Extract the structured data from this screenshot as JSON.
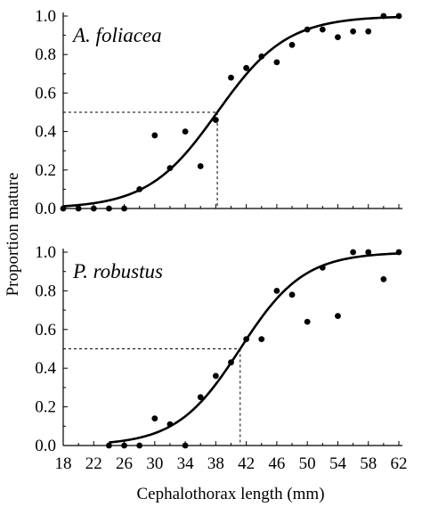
{
  "chart_data": {
    "type": "scatter",
    "xlabel": "Cephalothorax length (mm)",
    "ylabel": "Proportion mature",
    "xlim": [
      18,
      62
    ],
    "ylim": [
      0,
      1
    ],
    "xticks": [
      "18",
      "22",
      "26",
      "30",
      "34",
      "38",
      "42",
      "46",
      "50",
      "54",
      "58",
      "62"
    ],
    "yticks": [
      "0.0",
      "0.2",
      "0.4",
      "0.6",
      "0.8",
      "1.0"
    ],
    "point_color": "#000000",
    "line_color": "#000000",
    "panels": [
      {
        "title": "A. foliacea",
        "points": [
          [
            18,
            0.0
          ],
          [
            20,
            0.0
          ],
          [
            22,
            0.0
          ],
          [
            24,
            0.0
          ],
          [
            26,
            0.0
          ],
          [
            28,
            0.1
          ],
          [
            30,
            0.38
          ],
          [
            32,
            0.21
          ],
          [
            34,
            0.4
          ],
          [
            36,
            0.22
          ],
          [
            38,
            0.46
          ],
          [
            40,
            0.68
          ],
          [
            42,
            0.73
          ],
          [
            44,
            0.79
          ],
          [
            46,
            0.76
          ],
          [
            48,
            0.85
          ],
          [
            50,
            0.93
          ],
          [
            52,
            0.93
          ],
          [
            54,
            0.89
          ],
          [
            56,
            0.92
          ],
          [
            58,
            0.92
          ],
          [
            60,
            1.0
          ],
          [
            62,
            1.0
          ]
        ],
        "curve": {
          "midpoint": 38.2,
          "slope": 0.22,
          "x_range": [
            18,
            62
          ]
        },
        "reference_line": {
          "x": 38.2,
          "y": 0.5
        }
      },
      {
        "title": "P. robustus",
        "points": [
          [
            24,
            0.0
          ],
          [
            26,
            0.0
          ],
          [
            28,
            0.0
          ],
          [
            30,
            0.14
          ],
          [
            32,
            0.11
          ],
          [
            34,
            0.0
          ],
          [
            36,
            0.25
          ],
          [
            38,
            0.36
          ],
          [
            40,
            0.43
          ],
          [
            42,
            0.55
          ],
          [
            44,
            0.55
          ],
          [
            46,
            0.8
          ],
          [
            48,
            0.78
          ],
          [
            50,
            0.64
          ],
          [
            52,
            0.92
          ],
          [
            54,
            0.67
          ],
          [
            56,
            1.0
          ],
          [
            58,
            1.0
          ],
          [
            60,
            0.86
          ],
          [
            62,
            1.0
          ]
        ],
        "curve": {
          "midpoint": 41.2,
          "slope": 0.24,
          "x_range": [
            24,
            62
          ]
        },
        "reference_line": {
          "x": 41.2,
          "y": 0.5
        }
      }
    ]
  }
}
